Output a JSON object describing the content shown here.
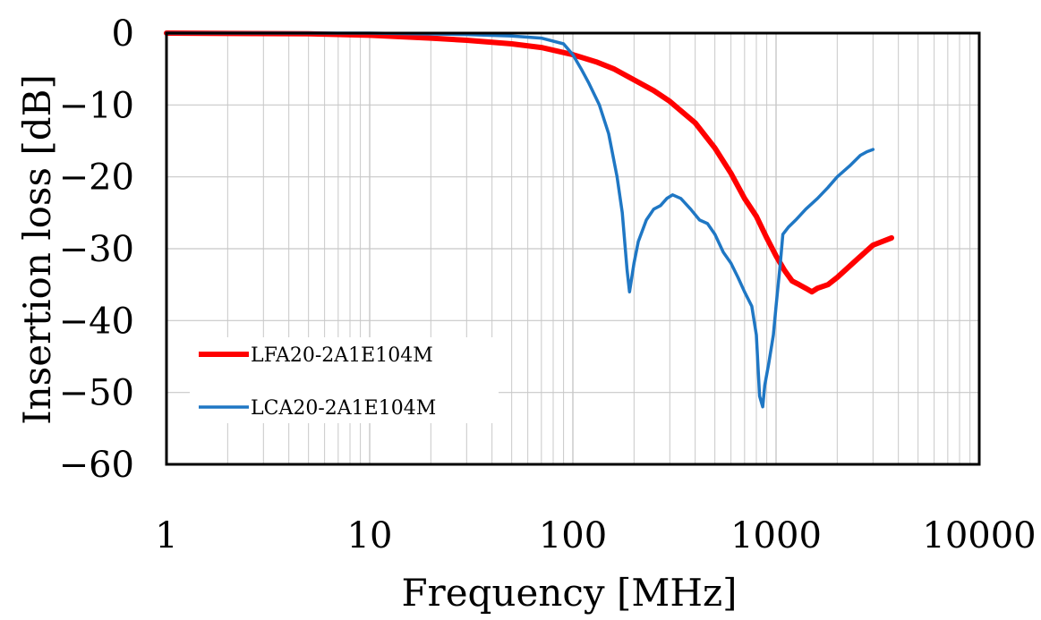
{
  "chart_data": {
    "type": "line",
    "title": "",
    "xlabel": "Frequency  [MHz]",
    "ylabel": "Insertion  loss  [dB]",
    "xscale": "log",
    "xlim": [
      1,
      10000
    ],
    "ylim": [
      -60,
      0
    ],
    "xticks": [
      "1",
      "10",
      "100",
      "1000",
      "10000"
    ],
    "yticks": [
      "0",
      "−10",
      "−20",
      "−30",
      "−40",
      "−50",
      "−60"
    ],
    "grid": true,
    "legend_position": "bottom-left",
    "series": [
      {
        "name": "LFA20-2A1E104M",
        "color": "#ff0000",
        "points": [
          [
            1,
            0
          ],
          [
            5,
            -0.1
          ],
          [
            10,
            -0.3
          ],
          [
            20,
            -0.7
          ],
          [
            30,
            -1.0
          ],
          [
            50,
            -1.5
          ],
          [
            70,
            -2.0
          ],
          [
            100,
            -3.0
          ],
          [
            130,
            -4.0
          ],
          [
            160,
            -5.0
          ],
          [
            200,
            -6.5
          ],
          [
            250,
            -8.0
          ],
          [
            300,
            -9.5
          ],
          [
            400,
            -12.5
          ],
          [
            500,
            -16.0
          ],
          [
            600,
            -19.5
          ],
          [
            700,
            -23.0
          ],
          [
            800,
            -25.5
          ],
          [
            900,
            -28.5
          ],
          [
            1000,
            -31.0
          ],
          [
            1100,
            -33.0
          ],
          [
            1200,
            -34.5
          ],
          [
            1300,
            -35.0
          ],
          [
            1400,
            -35.5
          ],
          [
            1500,
            -36.0
          ],
          [
            1600,
            -35.5
          ],
          [
            1800,
            -35.0
          ],
          [
            2000,
            -34.0
          ],
          [
            2500,
            -31.5
          ],
          [
            3000,
            -29.5
          ],
          [
            3700,
            -28.5
          ]
        ]
      },
      {
        "name": "LCA20-2A1E104M",
        "color": "#1f77c4",
        "points": [
          [
            1,
            0
          ],
          [
            10,
            0
          ],
          [
            30,
            -0.2
          ],
          [
            50,
            -0.4
          ],
          [
            70,
            -0.7
          ],
          [
            90,
            -1.5
          ],
          [
            100,
            -3.0
          ],
          [
            110,
            -5.0
          ],
          [
            120,
            -7.0
          ],
          [
            135,
            -10.0
          ],
          [
            150,
            -14.0
          ],
          [
            165,
            -20.0
          ],
          [
            175,
            -25.0
          ],
          [
            185,
            -33.0
          ],
          [
            190,
            -36.0
          ],
          [
            200,
            -32.0
          ],
          [
            210,
            -29.0
          ],
          [
            230,
            -26.0
          ],
          [
            250,
            -24.5
          ],
          [
            270,
            -24.0
          ],
          [
            290,
            -23.0
          ],
          [
            310,
            -22.5
          ],
          [
            340,
            -23.0
          ],
          [
            380,
            -24.5
          ],
          [
            420,
            -26.0
          ],
          [
            460,
            -26.5
          ],
          [
            500,
            -28.0
          ],
          [
            550,
            -30.5
          ],
          [
            600,
            -32.0
          ],
          [
            650,
            -34.0
          ],
          [
            700,
            -36.0
          ],
          [
            760,
            -38.0
          ],
          [
            800,
            -42.0
          ],
          [
            830,
            -50.5
          ],
          [
            860,
            -52.0
          ],
          [
            880,
            -49.0
          ],
          [
            920,
            -46.0
          ],
          [
            970,
            -42.0
          ],
          [
            1000,
            -38.0
          ],
          [
            1050,
            -32.0
          ],
          [
            1080,
            -28.0
          ],
          [
            1150,
            -27.0
          ],
          [
            1250,
            -26.0
          ],
          [
            1400,
            -24.5
          ],
          [
            1600,
            -23.0
          ],
          [
            1800,
            -21.5
          ],
          [
            2000,
            -20.0
          ],
          [
            2300,
            -18.5
          ],
          [
            2600,
            -17.0
          ],
          [
            2800,
            -16.5
          ],
          [
            3000,
            -16.2
          ]
        ]
      }
    ]
  }
}
